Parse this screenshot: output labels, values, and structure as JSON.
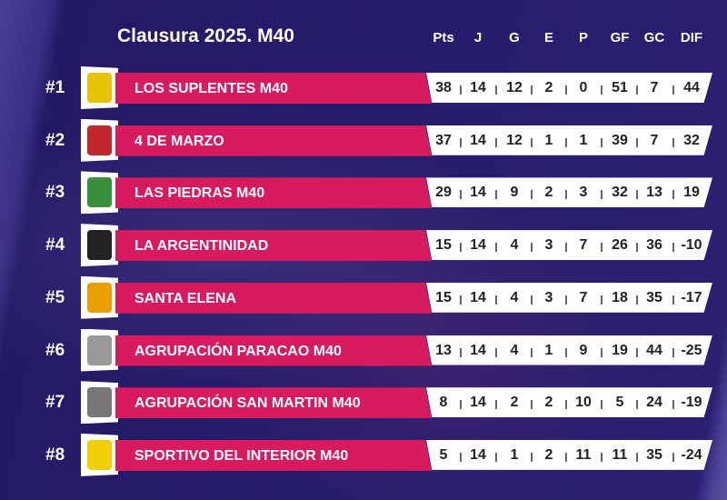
{
  "title": "Clausura 2025. M40",
  "columns": [
    "Pts",
    "J",
    "G",
    "E",
    "P",
    "GF",
    "GC",
    "DIF"
  ],
  "colors": {
    "accent": "#d81b5e",
    "background": "#261c6c"
  },
  "rows": [
    {
      "rank": "#1",
      "team": "LOS SUPLENTES M40",
      "logo_color": "#e5c400",
      "stats": [
        "38",
        "14",
        "12",
        "2",
        "0",
        "51",
        "7",
        "44"
      ]
    },
    {
      "rank": "#2",
      "team": "4 DE MARZO",
      "logo_color": "#c0282d",
      "stats": [
        "37",
        "14",
        "12",
        "1",
        "1",
        "39",
        "7",
        "32"
      ]
    },
    {
      "rank": "#3",
      "team": "LAS PIEDRAS M40",
      "logo_color": "#3a8f3a",
      "stats": [
        "29",
        "14",
        "9",
        "2",
        "3",
        "32",
        "13",
        "19"
      ]
    },
    {
      "rank": "#4",
      "team": "LA ARGENTINIDAD",
      "logo_color": "#222222",
      "stats": [
        "15",
        "14",
        "4",
        "3",
        "7",
        "26",
        "36",
        "-10"
      ]
    },
    {
      "rank": "#5",
      "team": "SANTA ELENA",
      "logo_color": "#e8a000",
      "stats": [
        "15",
        "14",
        "4",
        "3",
        "7",
        "18",
        "35",
        "-17"
      ]
    },
    {
      "rank": "#6",
      "team": "AGRUPACIÓN PARACAO M40",
      "logo_color": "#999999",
      "stats": [
        "13",
        "14",
        "4",
        "1",
        "9",
        "19",
        "44",
        "-25"
      ]
    },
    {
      "rank": "#7",
      "team": "AGRUPACIÓN SAN MARTIN M40",
      "logo_color": "#777777",
      "stats": [
        "8",
        "14",
        "2",
        "2",
        "10",
        "5",
        "24",
        "-19"
      ]
    },
    {
      "rank": "#8",
      "team": "SPORTIVO DEL INTERIOR M40",
      "logo_color": "#f0d000",
      "stats": [
        "5",
        "14",
        "1",
        "2",
        "11",
        "11",
        "35",
        "-24"
      ]
    }
  ]
}
